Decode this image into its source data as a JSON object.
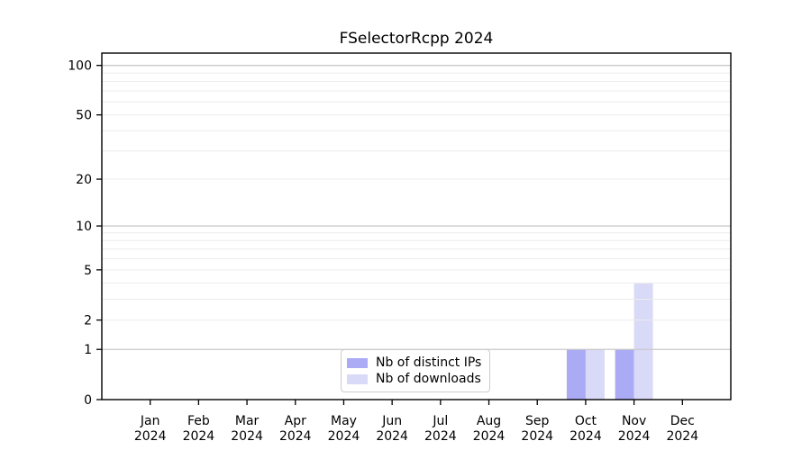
{
  "chart_data": {
    "type": "bar",
    "title": "FSelectorRcpp 2024",
    "categories": [
      "Jan",
      "Feb",
      "Mar",
      "Apr",
      "May",
      "Jun",
      "Jul",
      "Aug",
      "Sep",
      "Oct",
      "Nov",
      "Dec"
    ],
    "category_year": "2024",
    "series": [
      {
        "name": "Nb of distinct IPs",
        "color": "#aaaaf5",
        "values": [
          0,
          0,
          0,
          0,
          0,
          0,
          0,
          0,
          0,
          1,
          1,
          0
        ]
      },
      {
        "name": "Nb of downloads",
        "color": "#d9d9f8",
        "values": [
          0,
          0,
          0,
          0,
          0,
          0,
          0,
          0,
          0,
          1,
          4,
          0
        ]
      }
    ],
    "xlabel": "",
    "ylabel": "",
    "y_axis": {
      "scale": "log1p",
      "tick_labels": [
        0,
        1,
        2,
        5,
        10,
        20,
        50,
        100
      ],
      "gridlines": [
        1,
        2,
        3,
        4,
        5,
        6,
        7,
        8,
        9,
        10,
        20,
        30,
        40,
        50,
        60,
        70,
        80,
        90,
        100
      ],
      "decade_gridlines": [
        1,
        10,
        100
      ],
      "ylim": [
        0,
        119
      ]
    },
    "legend": {
      "location": "lower center inside plot",
      "items": [
        "Nb of distinct IPs",
        "Nb of downloads"
      ]
    },
    "grid": "horizontal, drawn above bars",
    "colors": {
      "grid_decade": "#c9c9c9",
      "grid_light": "#ececec",
      "axis": "#000000",
      "text": "#000000",
      "background": "#ffffff"
    }
  }
}
